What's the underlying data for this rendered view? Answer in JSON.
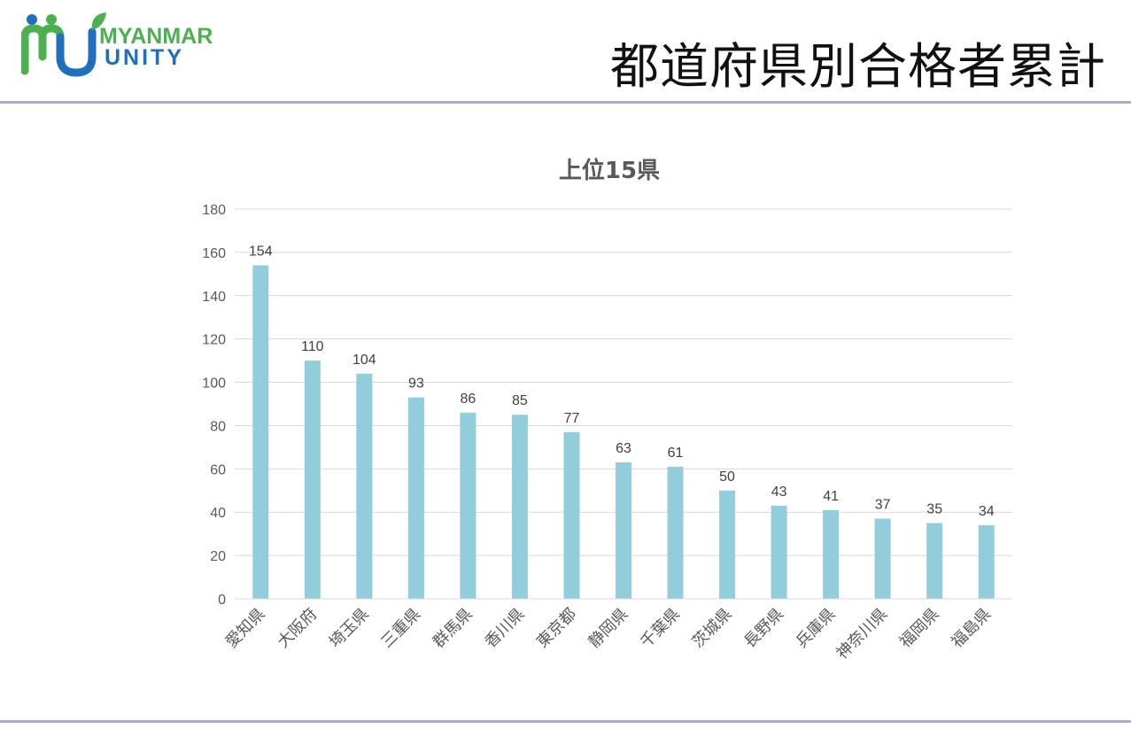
{
  "header": {
    "title": "都道府県別合格者累計",
    "logo": {
      "line1": "MYANMAR",
      "line2": "UNITY"
    }
  },
  "colors": {
    "bar": "#92cddc",
    "grid": "#d9d9d9",
    "rule": "#b3a7c9",
    "logo_blue": "#1f6fbf",
    "logo_green": "#4caf50"
  },
  "chart_data": {
    "type": "bar",
    "title": "上位15県",
    "xlabel": "",
    "ylabel": "",
    "ylim": [
      0,
      180
    ],
    "yticks": [
      0,
      20,
      40,
      60,
      80,
      100,
      120,
      140,
      160,
      180
    ],
    "grid": true,
    "categories": [
      "愛知県",
      "大阪府",
      "埼玉県",
      "三重県",
      "群馬県",
      "香川県",
      "東京都",
      "静岡県",
      "千葉県",
      "茨城県",
      "長野県",
      "兵庫県",
      "神奈川県",
      "福岡県",
      "福島県"
    ],
    "values": [
      154,
      110,
      104,
      93,
      86,
      85,
      77,
      63,
      61,
      50,
      43,
      41,
      37,
      35,
      34
    ],
    "data_labels": true
  }
}
